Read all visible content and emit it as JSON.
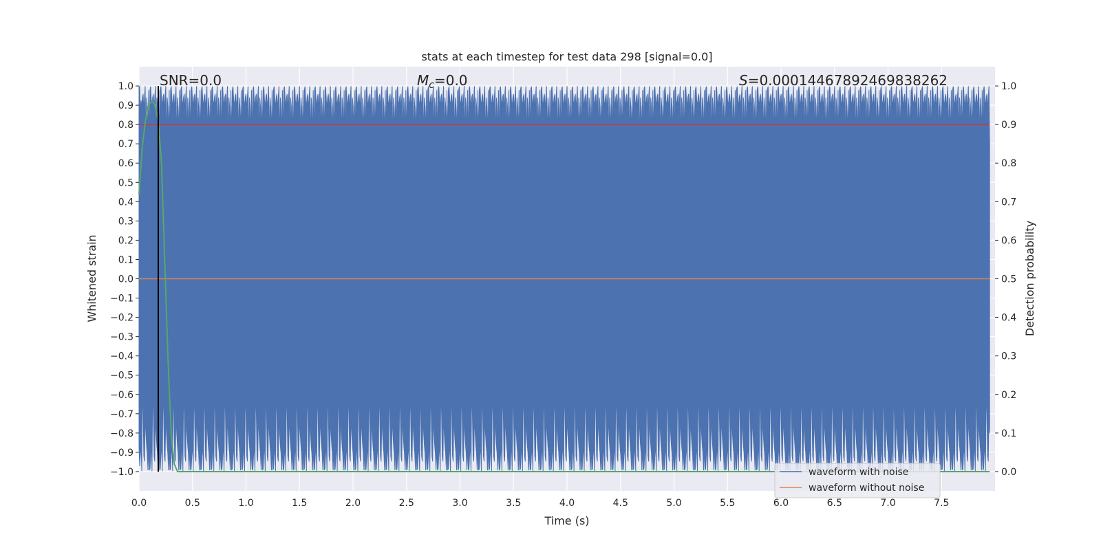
{
  "chart_data": {
    "type": "line",
    "title": "stats at each timestep for test data 298 [signal=0.0]",
    "xlabel": "Time (s)",
    "ylabel": "Whitened strain",
    "ylabel_right": "Detection probability",
    "xlim": [
      0.0,
      8.0
    ],
    "ylim": [
      -1.1,
      1.1
    ],
    "ylim_right": [
      -0.05,
      1.05
    ],
    "xticks": [
      "0.0",
      "0.5",
      "1.0",
      "1.5",
      "2.0",
      "2.5",
      "3.0",
      "3.5",
      "4.0",
      "4.5",
      "5.0",
      "5.5",
      "6.0",
      "6.5",
      "7.0",
      "7.5"
    ],
    "yticks": [
      "1.0",
      "0.9",
      "0.8",
      "0.7",
      "0.6",
      "0.5",
      "0.4",
      "0.3",
      "0.2",
      "0.1",
      "0.0",
      "−0.1",
      "−0.2",
      "−0.3",
      "−0.4",
      "−0.5",
      "−0.6",
      "−0.7",
      "−0.8",
      "−0.9",
      "−1.0"
    ],
    "yticks_right": [
      "1.0",
      "0.9",
      "0.8",
      "0.7",
      "0.6",
      "0.5",
      "0.4",
      "0.3",
      "0.2",
      "0.1",
      "0.0"
    ],
    "annotations": {
      "snr": "SNR=0.0",
      "mc_symbol": "M",
      "mc_sub": "c",
      "mc_value": "=0.0",
      "s_symbol": "S",
      "s_value": "=0.00014467892469838262"
    },
    "grid": true,
    "legend_position": "lower right",
    "series": [
      {
        "name": "waveform with noise",
        "color": "#4c72b0",
        "description_range": [
          -1.0,
          1.0
        ]
      },
      {
        "name": "waveform without noise",
        "color": "#dd8452",
        "values_x": [
          0.0,
          8.0
        ],
        "values_y": [
          0.0,
          0.0
        ]
      },
      {
        "color": "#55a868",
        "axis": "right",
        "x": [
          0.0,
          0.03,
          0.06,
          0.09,
          0.12,
          0.15,
          0.18,
          0.21,
          0.24,
          0.27,
          0.3,
          0.33,
          0.36,
          0.4,
          1.0,
          2.0,
          3.0,
          4.0,
          5.0,
          6.0,
          7.0,
          7.95
        ],
        "y": [
          0.72,
          0.84,
          0.91,
          0.95,
          0.96,
          0.95,
          0.91,
          0.8,
          0.55,
          0.3,
          0.1,
          0.02,
          0.0,
          0.0,
          0.0,
          0.0,
          0.0,
          0.0,
          0.0,
          0.0,
          0.0,
          0.0
        ]
      },
      {
        "color": "#dd3333",
        "axis": "right",
        "x": [
          0.0,
          8.0
        ],
        "y": [
          0.9,
          0.9
        ]
      },
      {
        "color": "#000000",
        "vertical_x": 0.18
      }
    ]
  }
}
